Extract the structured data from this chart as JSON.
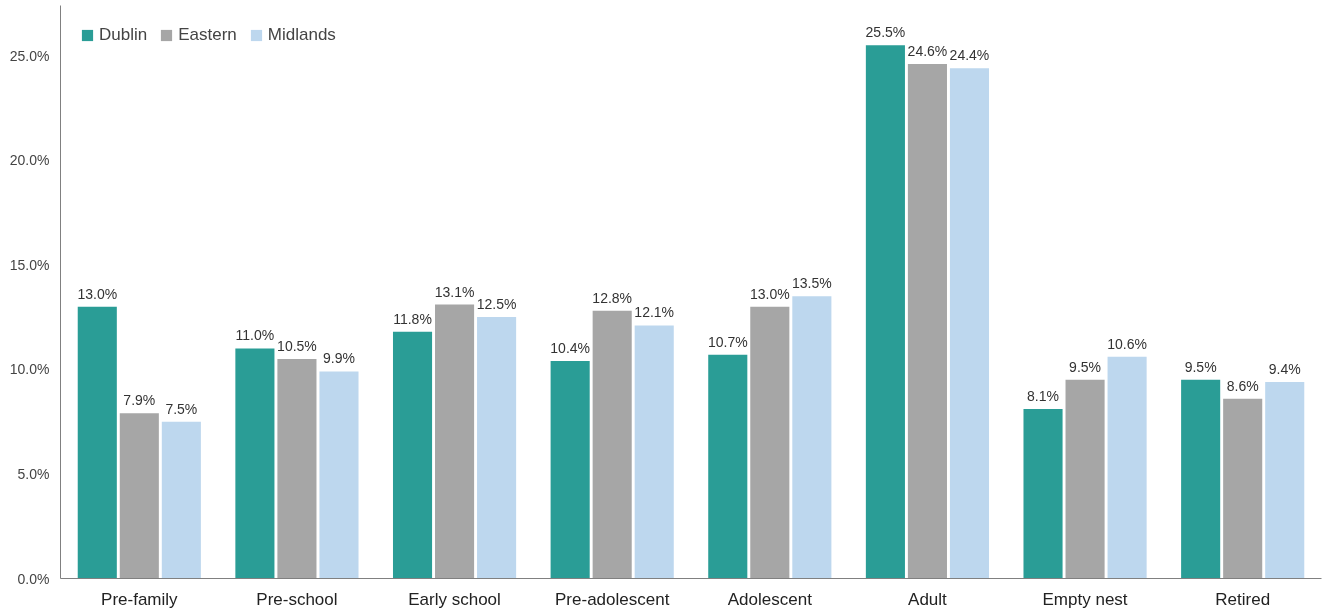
{
  "chart_data": {
    "type": "bar",
    "categories": [
      "Pre-family",
      "Pre-school",
      "Early school",
      "Pre-adolescent",
      "Adolescent",
      "Adult",
      "Empty nest",
      "Retired"
    ],
    "series": [
      {
        "name": "Dublin",
        "color": "#2a9d96",
        "values": [
          13.0,
          11.0,
          11.8,
          10.4,
          10.7,
          25.5,
          8.1,
          9.5
        ],
        "value_labels": [
          "13.0%",
          "11.0%",
          "11.8%",
          "10.4%",
          "10.7%",
          "25.5%",
          "8.1%",
          "9.5%"
        ]
      },
      {
        "name": "Eastern",
        "color": "#a6a6a6",
        "values": [
          7.9,
          10.5,
          13.1,
          12.8,
          13.0,
          24.6,
          9.5,
          8.6
        ],
        "value_labels": [
          "7.9%",
          "10.5%",
          "13.1%",
          "12.8%",
          "13.0%",
          "24.6%",
          "9.5%",
          "8.6%"
        ]
      },
      {
        "name": "Midlands",
        "color": "#bdd7ee",
        "values": [
          7.5,
          9.9,
          12.5,
          12.1,
          13.5,
          24.4,
          10.6,
          9.4
        ],
        "value_labels": [
          "7.5%",
          "9.9%",
          "12.5%",
          "12.1%",
          "13.5%",
          "24.4%",
          "10.6%",
          "9.4%"
        ]
      }
    ],
    "ylim": [
      0,
      27.4
    ],
    "yticks": [
      {
        "value": 0,
        "label": "0.0%"
      },
      {
        "value": 5,
        "label": "5.0%"
      },
      {
        "value": 10,
        "label": "10.0%"
      },
      {
        "value": 15,
        "label": "15.0%"
      },
      {
        "value": 20,
        "label": "20.0%"
      },
      {
        "value": 25,
        "label": "25.0%"
      }
    ],
    "grid": false,
    "legend": "top left"
  }
}
